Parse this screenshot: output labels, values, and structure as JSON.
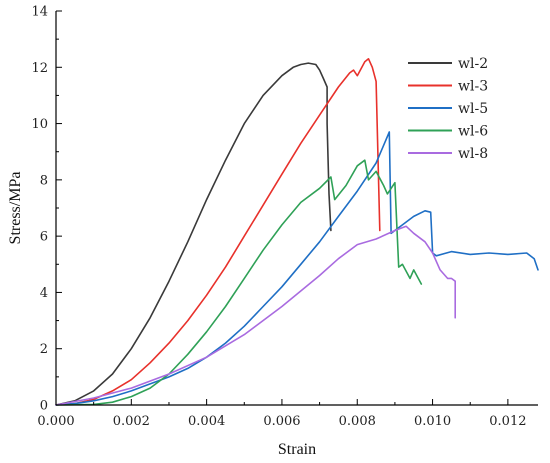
{
  "chart_data": {
    "type": "line",
    "title": "",
    "xlabel": "Strain",
    "ylabel": "Stress/MPa",
    "xlim": [
      0,
      0.0128
    ],
    "ylim": [
      0,
      14
    ],
    "xticks": [
      0,
      0.002,
      0.004,
      0.006,
      0.008,
      0.01,
      0.012
    ],
    "xtick_labels": [
      "0.000",
      "0.002",
      "0.004",
      "0.006",
      "0.008",
      "0.010",
      "0.012"
    ],
    "yticks": [
      0,
      2,
      4,
      6,
      8,
      10,
      12,
      14
    ],
    "ytick_labels": [
      "0",
      "2",
      "4",
      "6",
      "8",
      "10",
      "12",
      "14"
    ],
    "grid": false,
    "legend_position": "top-right",
    "series": [
      {
        "name": "wl-2",
        "color": "#3a3a3a",
        "x": [
          0,
          0.0005,
          0.001,
          0.0015,
          0.002,
          0.0025,
          0.003,
          0.0035,
          0.004,
          0.0045,
          0.005,
          0.0055,
          0.006,
          0.0063,
          0.0065,
          0.0067,
          0.0069,
          0.007,
          0.0071,
          0.0072,
          0.0072,
          0.00725,
          0.0073
        ],
        "y": [
          0,
          0.15,
          0.5,
          1.1,
          2.0,
          3.1,
          4.4,
          5.8,
          7.3,
          8.7,
          10.0,
          11.0,
          11.7,
          12.0,
          12.1,
          12.15,
          12.1,
          11.9,
          11.6,
          11.3,
          10.0,
          7.5,
          6.2
        ]
      },
      {
        "name": "wl-3",
        "color": "#e8312b",
        "x": [
          0,
          0.0005,
          0.001,
          0.0015,
          0.002,
          0.0025,
          0.003,
          0.0035,
          0.004,
          0.0045,
          0.005,
          0.0055,
          0.006,
          0.0065,
          0.007,
          0.0075,
          0.0078,
          0.0079,
          0.008,
          0.0082,
          0.0083,
          0.0084,
          0.0085,
          0.0086
        ],
        "y": [
          0,
          0.05,
          0.2,
          0.5,
          0.9,
          1.5,
          2.2,
          3.0,
          3.9,
          4.9,
          6.0,
          7.1,
          8.2,
          9.3,
          10.3,
          11.3,
          11.8,
          11.9,
          11.7,
          12.2,
          12.3,
          12.0,
          11.5,
          6.2
        ]
      },
      {
        "name": "wl-5",
        "color": "#1f6fc5",
        "x": [
          0,
          0.0005,
          0.001,
          0.0015,
          0.002,
          0.0025,
          0.003,
          0.0035,
          0.004,
          0.0045,
          0.005,
          0.0055,
          0.006,
          0.0065,
          0.007,
          0.0075,
          0.008,
          0.0085,
          0.00885,
          0.0089,
          0.0092,
          0.0095,
          0.0098,
          0.00995,
          0.01,
          0.0101,
          0.0105,
          0.011,
          0.0115,
          0.012,
          0.0125,
          0.0127,
          0.0128
        ],
        "y": [
          0,
          0.05,
          0.15,
          0.3,
          0.5,
          0.75,
          1.0,
          1.3,
          1.7,
          2.2,
          2.8,
          3.5,
          4.2,
          5.0,
          5.8,
          6.7,
          7.6,
          8.6,
          9.7,
          6.1,
          6.4,
          6.7,
          6.9,
          6.85,
          5.4,
          5.3,
          5.45,
          5.35,
          5.4,
          5.35,
          5.4,
          5.2,
          4.8
        ]
      },
      {
        "name": "wl-6",
        "color": "#2fa157",
        "x": [
          0,
          0.001,
          0.0015,
          0.002,
          0.0025,
          0.003,
          0.0035,
          0.004,
          0.0045,
          0.005,
          0.0055,
          0.006,
          0.0065,
          0.007,
          0.0073,
          0.0074,
          0.0077,
          0.008,
          0.0082,
          0.0083,
          0.0085,
          0.0087,
          0.0088,
          0.009,
          0.0091,
          0.0092,
          0.0094,
          0.0095,
          0.0097
        ],
        "y": [
          0,
          0.02,
          0.1,
          0.3,
          0.6,
          1.1,
          1.8,
          2.6,
          3.5,
          4.5,
          5.5,
          6.4,
          7.2,
          7.7,
          8.1,
          7.3,
          7.8,
          8.5,
          8.7,
          8.0,
          8.3,
          7.8,
          7.5,
          7.9,
          4.9,
          5.0,
          4.5,
          4.8,
          4.3
        ]
      },
      {
        "name": "wl-8",
        "color": "#a96be0",
        "x": [
          0,
          0.001,
          0.002,
          0.003,
          0.004,
          0.005,
          0.006,
          0.007,
          0.0075,
          0.008,
          0.0085,
          0.009,
          0.0093,
          0.0095,
          0.0098,
          0.01,
          0.0102,
          0.0104,
          0.0105,
          0.0106,
          0.0106
        ],
        "y": [
          0,
          0.25,
          0.6,
          1.1,
          1.7,
          2.5,
          3.5,
          4.6,
          5.2,
          5.7,
          5.9,
          6.2,
          6.35,
          6.1,
          5.8,
          5.4,
          4.8,
          4.5,
          4.5,
          4.4,
          3.1
        ]
      }
    ]
  }
}
